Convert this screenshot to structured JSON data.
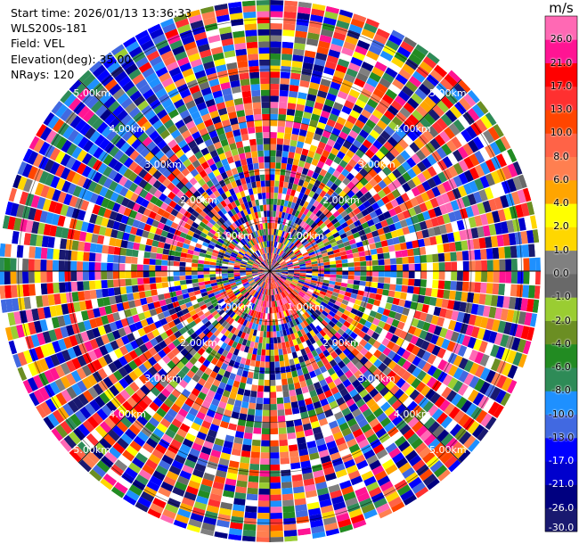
{
  "header": {
    "start_time": "Start time: 2026/01/13 13:36:33",
    "instrument": "WLS200s-181",
    "field": "Field: VEL",
    "elevation": "Elevation(deg): 35.00",
    "nrays": "NRays: 120"
  },
  "chart_data": {
    "type": "ppi-polar",
    "field": "VEL",
    "units": "m/s",
    "elevation_deg": 35.0,
    "n_rays": 120,
    "range_km": [
      0,
      5.5
    ],
    "range_rings_km": [
      1,
      2,
      3,
      4,
      5
    ],
    "range_ring_labels": [
      "1.00km",
      "2.00km",
      "3.00km",
      "4.00km",
      "5.00km"
    ],
    "spokes_deg": [
      0,
      45,
      90,
      135,
      180,
      225,
      270,
      315
    ],
    "colorbar": {
      "title": "m/s",
      "vmin": -30,
      "vmax": 30,
      "tick_labels": [
        "26.0",
        "21.0",
        "17.0",
        "13.0",
        "10.0",
        "8.0",
        "6.0",
        "4.0",
        "2.0",
        "1.0",
        "0.0",
        "-1.0",
        "-2.0",
        "-4.0",
        "-6.0",
        "-8.0",
        "-10.0",
        "-13.0",
        "-17.0",
        "-21.0",
        "-26.0",
        "-30.0"
      ],
      "bounds": [
        -30,
        -26,
        -21,
        -17,
        -13,
        -10,
        -8,
        -6,
        -4,
        -2,
        -1,
        0,
        1,
        2,
        4,
        6,
        8,
        10,
        13,
        17,
        21,
        26,
        30
      ],
      "colors": [
        "#191970",
        "#000080",
        "#0000cd",
        "#0000ff",
        "#4169e1",
        "#1e90ff",
        "#2e8b57",
        "#228b22",
        "#6b8e23",
        "#9acd32",
        "#696969",
        "#808080",
        "#ffd700",
        "#ffff00",
        "#ffa500",
        "#ff7f50",
        "#ff6347",
        "#ff4500",
        "#ff3030",
        "#ff0000",
        "#ff1493",
        "#ff69b4"
      ]
    }
  }
}
